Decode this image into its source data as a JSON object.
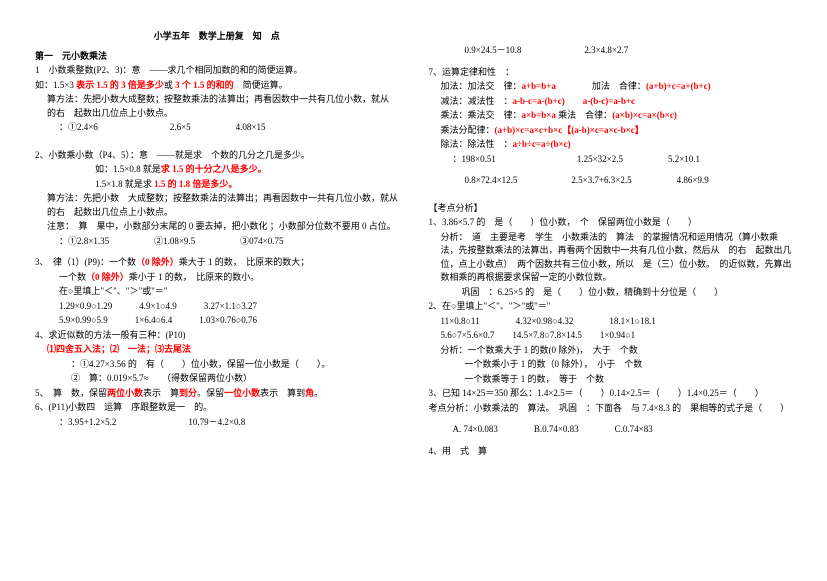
{
  "colors": {
    "text": "#000000",
    "red": "#ff0000",
    "blue": "#0000ff",
    "bg": "#ffffff"
  },
  "title": "小学五年　数学上册复　知　点",
  "left": {
    "h1": "第一　元小数乘法",
    "l1a": "1　小数乘整数(P2、3)：意　——求几个相同加数的和的简便运算。",
    "l1b_pre": "如：1.5×3 ",
    "l1b_red": "表示 1.5 的 3 倍是多少",
    "l1b_mid": "或 ",
    "l1b_red2": "3 个 1.5 的和的",
    "l1b_end": "　简便运算。",
    "l1c": "算方法：先把小数大成整数；按整数乘法的法算出；再看因数中一共有几位小数，就从　的右　起数出几位点上小数点。",
    "l1d": "：①2.4×6　　　　　　　　2.6×5　　　　　4.08×15",
    "l2a": "2、小数乘小数（P4、5）：意　——就是求　个数的几分之几是多少。",
    "l2b_pre": "如：1.5×0.8 就是",
    "l2b_red": "求 1.5 的十分之八是多少。",
    "l2c_pre": "1.5×1.8 就是求 ",
    "l2c_red": "1.5 的 1.8 倍是多少。",
    "l2d": "算方法：先把小数　大成整数；按整数乘法的法算出；再看因数中一共有几位小数，就从　的右　起数出几位点上小数点。",
    "l2e": "注意：　算　果中，小数部分末尾的 0 要去掉，把小数化 ；小数部分位数不要用 0 占位。",
    "l2f": "：①2.8×1.35　　　　　②1.08×9.5　　　　　③074×0.75",
    "l3a": "3、　律（1）(P9)：一个数",
    "l3a_red": "（0 除外）",
    "l3a_end": "乘大于 1 的数，　比原来的数大；",
    "l3b": "一个数",
    "l3b_red": "（0 除外）",
    "l3b_end": "乘小于 1 的数，　比原来的数小。",
    "l3c": "在○里填上\"＜\"、\"＞\"或\"＝\"",
    "l3d": "1.29×0.9○1.29　　　4.9×1○4.9　　　3.27×1.1○3.27",
    "l3e": "5.9×0.99○5.9　　　1×6.4○6.4　　　1.03×0.76○0.76",
    "l4a": "4、求近似数的方法一般有三种：(P10)",
    "l4b": "⑴四舍五入法；⑵　一法；⑶去尾法",
    "l4c": "：①4.27×3.56 的　有（　　）位小数，保留一位小数是（　　）。",
    "l4d": "②　算：0.019×5.7≈　　（得数保留两位小数）",
    "l5a_pre": "5、　算　数，保留",
    "l5a_red1": "两位小数",
    "l5a_mid1": "表示　算",
    "l5a_red2": "到分",
    "l5a_mid2": "。保留",
    "l5a_red3": "一位小数",
    "l5a_mid3": "表示　算到",
    "l5a_red4": "角",
    "l5a_end": "。",
    "l6a": "6、(P11)小数四　运算　序跟整数是一　的。",
    "l6b": "：3.95+1.2×5.2　　　　　　　　10.79－4.2×0.8"
  },
  "right": {
    "r0": "0.9×24.5－10.8　　　　　　　2.3×4.8×2.7",
    "r1": "7、运算定律和性　：",
    "r1a_pre": "加法：加法交　律：",
    "r1a_red1": "a+b=b+a",
    "r1a_mid": "　　　　加法　合律：",
    "r1a_red2": "(a+b)+c=a+(b+c)",
    "r1b_pre": "减法：减法性　：",
    "r1b_red1": "a-b-c=a-(b+c)",
    "r1b_mid": "　　",
    "r1b_red2": "a-(b-c)=a-b+c",
    "r1c_pre": "乘法：乘法交　律：",
    "r1c_red1": "a×b=b×a",
    "r1c_mid": " 乘法　合律：",
    "r1c_red2": "(a×b)×c=a×(b×c)",
    "r1d_pre": "乘法分配律：",
    "r1d_red": "(a+b)×c=a×c+b×c【(a-b)×c=a×c-b×c】",
    "r1e_pre": "除法：除法性　：",
    "r1e_red": "a÷b÷c=a÷(b×c)",
    "r1f": "：198×0.51　　　　　　　　　1.25×32×2.5　　　　　5.2×10.1",
    "r1g": "0.8×72.4×12.5　　　　　　2.5×3.7+6.3×2.5　　　　　4.86×9.9",
    "r2": "【考点分析】",
    "r2a": "1、3.86×5.7 的　是（　　）位小数，　个　保留两位小数是（　　）",
    "r2b": "分析：　道　主要是考　学生　小数乘法的　算法　的掌握情况和运用情况（算小数乘法，先按整数乘法的法算出，再看两个因数中一共有几位小数，然后从　的右　起数出几位，点上小数点）　两个因数共有三位小数，所以　是（三）位小数。　的近似数，先算出　数相乘的再根据要求保留一定的小数位数。",
    "r2c": "　巩固　：6.25×5 的　是（　　）位小数，精确到十分位是（　　）",
    "r2d": "2、在○里填上\"＜\"、\"＞\"或\"＝\"",
    "r2e": "11×0.8○11　　　　4.32×0.98○4.32　　　　18.1×1○18.1",
    "r2f": "5.6○7×5.6×0.7　　14.5×7.8○7.8×14.5　　1×0.94○1",
    "r2g": "分析：一个数乘大于 1 的数(0 除外)，　大于　个数",
    "r2h": "一个数乘小于 1 的数（0 除外），　小于　个数",
    "r2i": "一个数乘等于 1 的数，　等于　个数",
    "r3a": "3、已知 14×25＝350 那么：1.4×2.5＝（　　）0.14×2.5＝（　　）1.4×0.25＝（　　）",
    "r3b": "考点分析：小数乘法的　算法。　巩固　：下面各　与 7.4×8.3 的　果相等的式子是（　　）",
    "r3c": "A. 74×0.083　　　　B.0.74×0.83　　　　C.0.74×83",
    "r4": "4、用　式　算"
  }
}
